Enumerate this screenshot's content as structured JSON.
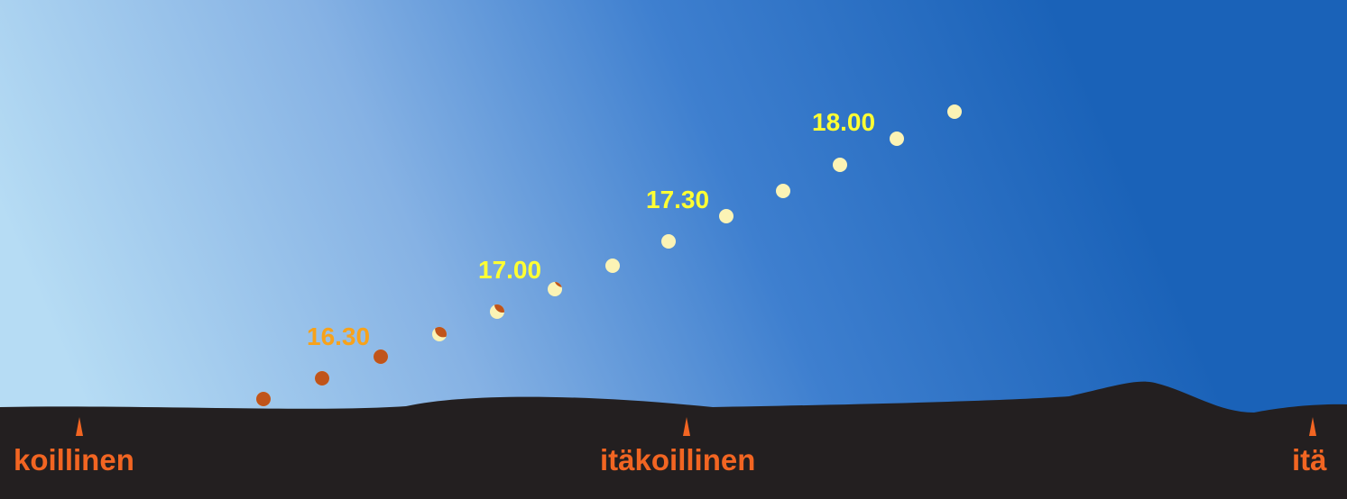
{
  "times": [
    "16.30",
    "17.00",
    "17.30",
    "18.00"
  ],
  "directions": [
    "koillinen",
    "itäkoillinen",
    "itä"
  ]
}
